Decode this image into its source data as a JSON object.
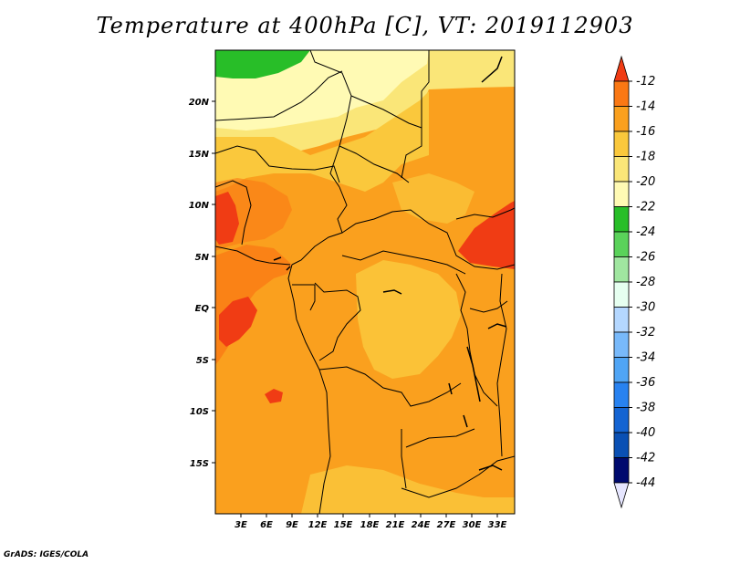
{
  "title": "Temperature at 400hPa [C], VT: 2019112903",
  "credit": "GrADS: IGES/COLA",
  "x_ticks": [
    "3E",
    "6E",
    "9E",
    "12E",
    "15E",
    "18E",
    "21E",
    "24E",
    "27E",
    "30E",
    "33E"
  ],
  "y_ticks": [
    "20N",
    "15N",
    "10N",
    "5N",
    "EQ",
    "5S",
    "10S",
    "15S"
  ],
  "colorbar": {
    "labels": [
      "-12",
      "-14",
      "-16",
      "-18",
      "-20",
      "-22",
      "-24",
      "-26",
      "-28",
      "-30",
      "-32",
      "-34",
      "-36",
      "-38",
      "-40",
      "-42",
      "-44"
    ],
    "colors": [
      "#f03c14",
      "#fa7814",
      "#faa01e",
      "#fac83c",
      "#fae678",
      "#fffab4",
      "#28be28",
      "#5ad25a",
      "#a0e6a0",
      "#e6fff0",
      "#b4d7ff",
      "#78b9fa",
      "#50a5f5",
      "#2882f0",
      "#1464d2",
      "#0a50b4",
      "#000a6e",
      "#e6e6ff"
    ]
  },
  "legend_colors": {
    "c_-12_-14": "#fa7814",
    "c_-14_-16": "#faa01e",
    "c_-16_-18": "#fac83c",
    "c_-18_-20": "#fae678",
    "c_-20_-22": "#fffab4",
    "c_-22_-24": "#28be28"
  }
}
